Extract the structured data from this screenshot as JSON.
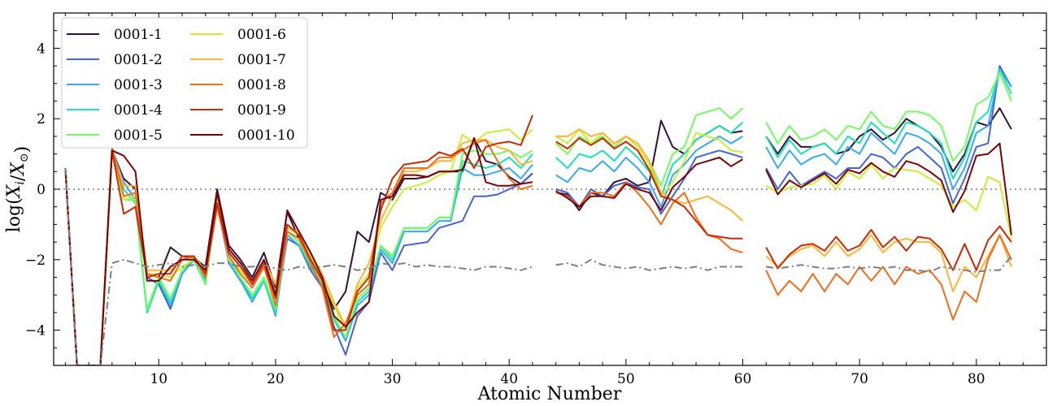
{
  "chart_data": {
    "type": "line",
    "xlabel": "Atomic Number",
    "ylabel": "log(X_i/X_⊙)",
    "xlim": [
      1,
      86
    ],
    "ylim": [
      -5,
      5
    ],
    "x_ticks": [
      10,
      20,
      30,
      40,
      50,
      60,
      70,
      80
    ],
    "y_ticks": [
      -4,
      -2,
      0,
      2,
      4
    ],
    "reference_line": {
      "y": 0,
      "style": "dotted",
      "color": "#7f7f7f"
    },
    "legend_position": "top-left",
    "legend_columns": 2,
    "x": [
      2,
      3,
      4,
      5,
      6,
      7,
      8,
      9,
      10,
      11,
      12,
      13,
      14,
      15,
      16,
      17,
      18,
      19,
      20,
      21,
      22,
      23,
      24,
      25,
      26,
      27,
      28,
      29,
      30,
      31,
      32,
      33,
      34,
      35,
      36,
      37,
      38,
      39,
      40,
      41,
      42,
      44,
      45,
      46,
      47,
      48,
      49,
      50,
      51,
      52,
      53,
      54,
      55,
      56,
      57,
      58,
      59,
      60,
      62,
      63,
      64,
      65,
      66,
      67,
      68,
      69,
      70,
      71,
      72,
      73,
      74,
      75,
      76,
      77,
      78,
      79,
      80,
      81,
      82,
      83
    ],
    "series": [
      {
        "name": "0001-1",
        "color": "#30123b",
        "values": [
          0.6,
          -5,
          -5,
          -5,
          1.1,
          0.3,
          0,
          -2.4,
          -2.5,
          -1.65,
          -1.9,
          -1.95,
          -2.2,
          0,
          -1.6,
          -2,
          -2.5,
          -1.8,
          -2.8,
          -0.65,
          -1.4,
          -1.9,
          -2.6,
          -3.4,
          -2.9,
          -1.2,
          -1.5,
          -0.1,
          -0.3,
          0.3,
          0.3,
          0.35,
          0.5,
          0.5,
          0.5,
          1.45,
          0.8,
          0.7,
          0.35,
          0.15,
          0.45,
          -0.1,
          -0.15,
          -0.6,
          -0.1,
          -0.2,
          0.2,
          0.3,
          0.1,
          0.2,
          1.95,
          1.2,
          1,
          1.4,
          1.6,
          1.8,
          1.6,
          1.65,
          1.5,
          1,
          1.5,
          1.2,
          1.2,
          1.3,
          1.0,
          1.1,
          1.5,
          1.7,
          1.4,
          1.6,
          2.0,
          1.8,
          1.6,
          1.2,
          0.5,
          1.0,
          1.9,
          1.8,
          2.3,
          1.7
        ]
      },
      {
        "name": "0001-2",
        "color": "#4662d7",
        "values": [
          0.6,
          -5,
          -5,
          -5,
          1.1,
          0.2,
          -0.3,
          -2.5,
          -2.7,
          -3.4,
          -2.4,
          -2.0,
          -2.5,
          -0.4,
          -2.1,
          -2.6,
          -3.1,
          -2.6,
          -3.5,
          -1.4,
          -1.6,
          -2.3,
          -2.8,
          -3.9,
          -4.7,
          -3.6,
          -3.2,
          -1.8,
          -2.3,
          -1.6,
          -1.55,
          -1.5,
          -1.1,
          -1.0,
          -0.9,
          -0.2,
          -0.2,
          -0.15,
          0,
          0.15,
          0.45,
          0,
          -0.1,
          -0.5,
          0,
          -0.2,
          0.1,
          0.2,
          0.05,
          0.0,
          -0.7,
          -0.2,
          0.3,
          0.9,
          1.0,
          1.1,
          1.0,
          0.9,
          0.6,
          0.0,
          0.5,
          0.1,
          0.3,
          0.5,
          0.3,
          0.6,
          0.6,
          1.0,
          0.9,
          0.6,
          1.0,
          1.2,
          0.9,
          0.6,
          -0.4,
          0.3,
          1.2,
          1.3,
          3.5,
          2.9
        ]
      },
      {
        "name": "0001-3",
        "color": "#36aaf9",
        "values": [
          0.6,
          -5,
          -5,
          -5,
          1.1,
          0.2,
          -0.3,
          -3.5,
          -2.6,
          -3.3,
          -2.4,
          -2.0,
          -2.6,
          -0.3,
          -2.1,
          -2.6,
          -3.2,
          -2.6,
          -3.6,
          -1.3,
          -1.6,
          -2.2,
          -2.7,
          -3.7,
          -4.3,
          -3.3,
          -3.0,
          -1.7,
          -2.1,
          -1.2,
          -1.2,
          -1.2,
          -0.9,
          -0.9,
          0.6,
          0.4,
          0.4,
          0.5,
          0.6,
          0.3,
          0.7,
          0.4,
          0.2,
          0.6,
          0.5,
          0.8,
          0.5,
          0.9,
          0.6,
          0.2,
          -0.5,
          0.4,
          0.7,
          1.1,
          1.3,
          1.5,
          1.3,
          1.5,
          1.2,
          0.6,
          1.1,
          0.7,
          0.9,
          1.0,
          0.7,
          1.2,
          1.0,
          1.6,
          1.3,
          1.0,
          1.6,
          1.5,
          1.3,
          1.0,
          0,
          0.6,
          1.6,
          1.8,
          3.4,
          2.9
        ]
      },
      {
        "name": "0001-4",
        "color": "#1ae4b6",
        "values": [
          0.6,
          -5,
          -5,
          -5,
          1.1,
          0.0,
          -0.4,
          -3.5,
          -2.6,
          -3.2,
          -2.3,
          -2.0,
          -2.7,
          -0.3,
          -2.0,
          -2.5,
          -3.1,
          -2.6,
          -3.5,
          -1.2,
          -1.5,
          -2.2,
          -2.7,
          -3.7,
          -4.2,
          -3.2,
          -2.9,
          -1.6,
          -2.0,
          -1.1,
          -1.1,
          -1.1,
          -0.8,
          -0.8,
          0.8,
          0.7,
          0.6,
          0.7,
          0.9,
          0.6,
          1.0,
          0.9,
          0.6,
          1.0,
          0.9,
          1.1,
          0.8,
          1.2,
          0.9,
          0.5,
          -0.2,
          0.7,
          1.0,
          1.4,
          1.6,
          1.8,
          1.6,
          1.9,
          1.5,
          0.9,
          1.4,
          1.0,
          1.2,
          1.3,
          1.0,
          1.5,
          1.3,
          1.9,
          1.6,
          1.3,
          1.9,
          1.8,
          1.6,
          1.3,
          0.3,
          0.9,
          1.9,
          2.2,
          3.4,
          2.7
        ]
      },
      {
        "name": "0001-5",
        "color": "#72fe5e",
        "values": [
          0.6,
          -5,
          -5,
          -5,
          1.1,
          -0.3,
          -0.3,
          -3.4,
          -2.5,
          -3.1,
          -2.3,
          -1.9,
          -2.7,
          -0.3,
          -1.9,
          -2.5,
          -3.0,
          -2.5,
          -3.4,
          -1.2,
          -1.5,
          -2.1,
          -2.6,
          -3.6,
          -4.2,
          -3.1,
          -2.8,
          -1.6,
          -1.9,
          -1.1,
          -1.1,
          -1.1,
          -0.8,
          -0.8,
          1.0,
          1.1,
          1.0,
          1.0,
          1.1,
          0.9,
          1.1,
          1.3,
          1.0,
          1.5,
          1.3,
          1.5,
          1.2,
          1.5,
          1.3,
          0.8,
          0.1,
          1.0,
          1.2,
          2.1,
          2.2,
          2.3,
          2.0,
          2.3,
          1.9,
          1.3,
          1.8,
          1.4,
          1.5,
          1.7,
          1.4,
          1.8,
          1.7,
          2.2,
          1.8,
          1.7,
          2.2,
          2.2,
          2.1,
          1.8,
          0.8,
          1.2,
          2.4,
          2.6,
          3.3,
          2.5
        ]
      },
      {
        "name": "0001-6",
        "color": "#c8ef34",
        "values": [
          0.6,
          -5,
          -5,
          -5,
          1.1,
          -0.3,
          -0.2,
          -2.4,
          -2.4,
          -2.5,
          -2.2,
          -2.0,
          -2.4,
          -0.2,
          -2.0,
          -2.3,
          -2.7,
          -2.2,
          -2.9,
          -1.1,
          -1.3,
          -1.9,
          -2.5,
          -3.3,
          -4.0,
          -2.8,
          -2.4,
          -1.1,
          -0.5,
          0.0,
          0.1,
          0.2,
          0.4,
          0.5,
          1.55,
          1.3,
          1.6,
          1.65,
          1.7,
          1.4,
          1.7,
          1.5,
          1.3,
          1.7,
          1.3,
          1.6,
          1.3,
          1.5,
          1.2,
          0.7,
          -0.2,
          0.2,
          0.8,
          1.6,
          1.5,
          1.4,
          1.1,
          1.05,
          0.1,
          -0.1,
          0.05,
          0.1,
          0.15,
          0.4,
          0.0,
          0.5,
          0.3,
          0.7,
          0.3,
          0.6,
          0.55,
          0.5,
          0.3,
          0.1,
          -0.5,
          -0.3,
          -0.6,
          0.35,
          0.2,
          -1.4
        ]
      },
      {
        "name": "0001-7",
        "color": "#fcb536",
        "values": [
          0.6,
          -5,
          -5,
          -5,
          1.1,
          0.1,
          0.1,
          -2.3,
          -2.3,
          -2.3,
          -2.0,
          -1.9,
          -2.3,
          -0.2,
          -1.8,
          -2.2,
          -2.6,
          -2.0,
          -2.7,
          -1.1,
          -1.2,
          -1.8,
          -2.4,
          -3.2,
          -3.9,
          -2.7,
          -2.1,
          -0.9,
          -0.2,
          0.5,
          0.5,
          0.6,
          0.8,
          0.8,
          1.3,
          1.4,
          1.4,
          1.2,
          1.1,
          0.7,
          0.8,
          1.5,
          1.5,
          1.7,
          1.5,
          1.6,
          1.3,
          1.5,
          1.3,
          0.8,
          -0.1,
          -0.3,
          -0.4,
          -0.3,
          -0.2,
          -0.4,
          -0.6,
          -0.9,
          -1.9,
          -2.2,
          -1.9,
          -1.7,
          -1.6,
          -1.9,
          -1.5,
          -1.9,
          -1.7,
          -1.3,
          -1.8,
          -1.5,
          -1.4,
          -1.5,
          -1.5,
          -1.8,
          -2.9,
          -2.2,
          -2.5,
          -1.9,
          -1.3,
          -2.2
        ]
      },
      {
        "name": "0001-8",
        "color": "#f26d18",
        "values": [
          0.6,
          -5,
          -5,
          -5,
          1.2,
          -0.2,
          -0.1,
          -2.4,
          -2.5,
          -2.6,
          -2.0,
          -1.9,
          -2.5,
          -0.5,
          -1.9,
          -2.4,
          -2.8,
          -2.2,
          -3.3,
          -1.2,
          -1.4,
          -2.1,
          -2.8,
          -4.2,
          -3.8,
          -3.0,
          -2.7,
          -0.4,
          -0.1,
          0.6,
          0.6,
          0.6,
          0.9,
          0.9,
          1.1,
          1.3,
          1.4,
          0.8,
          0.3,
          0.0,
          0.1,
          -0.1,
          -0.2,
          -0.5,
          -0.1,
          -0.1,
          -0.2,
          0.2,
          -0.1,
          -0.5,
          -1.0,
          -0.4,
          -0.1,
          -0.8,
          -1.3,
          -1.4,
          -1.7,
          -1.8,
          -2.3,
          -3.0,
          -2.6,
          -2.9,
          -2.4,
          -2.9,
          -2.4,
          -2.7,
          -2.2,
          -2.6,
          -2.2,
          -2.7,
          -2.2,
          -2.4,
          -2.3,
          -2.7,
          -3.7,
          -2.9,
          -3.2,
          -2.0,
          -1.3,
          -2.0
        ]
      },
      {
        "name": "0001-9",
        "color": "#cb2a04",
        "values": [
          0.6,
          -5,
          -5,
          -5,
          1.1,
          -0.7,
          -0.5,
          -2.5,
          -2.4,
          -2.4,
          -1.9,
          -1.9,
          -2.4,
          -0.4,
          -1.8,
          -2.2,
          -2.7,
          -2.1,
          -3.1,
          -1.0,
          -1.3,
          -2.0,
          -2.6,
          -4.0,
          -4.0,
          -2.9,
          -2.5,
          -0.6,
          0.3,
          0.7,
          0.75,
          0.8,
          1.05,
          0.95,
          1.15,
          0.6,
          1.2,
          1.3,
          1.35,
          1.25,
          2.1,
          1.35,
          1.15,
          1.45,
          1.25,
          1.45,
          1.15,
          1.35,
          1.1,
          0.55,
          -0.2,
          -0.3,
          -0.5,
          -0.9,
          -1.3,
          -1.35,
          -1.4,
          -1.4,
          -1.65,
          -2.25,
          -1.85,
          -1.6,
          -1.55,
          -1.75,
          -1.35,
          -1.75,
          -1.6,
          -1.15,
          -1.65,
          -1.35,
          -1.75,
          -1.35,
          -1.4,
          -1.7,
          -2.3,
          -1.55,
          -2.3,
          -1.45,
          -1.05,
          -1.5
        ]
      },
      {
        "name": "0001-10",
        "color": "#7a0403",
        "values": [
          0.6,
          -5,
          -5,
          -5,
          1.1,
          0.95,
          0.5,
          -2.6,
          -2.6,
          -2.2,
          -2.0,
          -2.0,
          -2.3,
          -0.1,
          -1.7,
          -2.1,
          -2.6,
          -2.0,
          -3.0,
          -0.6,
          -1.2,
          -1.8,
          -2.5,
          -3.6,
          -3.9,
          -3.5,
          -3.2,
          -0.3,
          -0.2,
          0.4,
          0.4,
          0.35,
          0.5,
          0.5,
          0.55,
          1.45,
          0.2,
          0.1,
          0.1,
          0.15,
          0.2,
          -0.05,
          -0.25,
          -0.5,
          -0.2,
          -0.2,
          -0.25,
          0.15,
          0.0,
          -0.1,
          -0.6,
          0.05,
          0.35,
          0.7,
          0.8,
          0.9,
          0.65,
          0.85,
          0.55,
          -0.15,
          0.25,
          0.05,
          0.25,
          0.45,
          0.15,
          0.55,
          0.45,
          0.75,
          0.5,
          0.35,
          0.8,
          0.7,
          0.5,
          0.25,
          -0.65,
          -0.05,
          0.95,
          1.0,
          1.3,
          -1.3
        ]
      },
      {
        "name": "",
        "color": "#7f7f7f",
        "style": "dashdot",
        "values": [
          0.6,
          -5,
          -5,
          -5,
          -2.1,
          -2.0,
          -2.1,
          -2.2,
          -2.15,
          -2.1,
          -2.2,
          -2.15,
          -2.2,
          -2.1,
          -2.1,
          -2.2,
          -2.2,
          -2.15,
          -2.25,
          -2.3,
          -2.2,
          -2.25,
          -2.2,
          -2.15,
          -2.2,
          -2.3,
          -2.25,
          -2.1,
          -2.15,
          -2.1,
          -2.2,
          -2.15,
          -2.2,
          -2.2,
          -2.25,
          -2.3,
          -2.2,
          -2.2,
          -2.25,
          -2.3,
          -2.2,
          -2.15,
          -2.1,
          -2.2,
          -2.0,
          -2.15,
          -2.2,
          -2.25,
          -2.2,
          -2.3,
          -2.25,
          -2.2,
          -2.25,
          -2.2,
          -2.3,
          -2.2,
          -2.2,
          -2.2,
          -2.2,
          -2.25,
          -2.2,
          -2.15,
          -2.2,
          -2.25,
          -2.25,
          -2.2,
          -2.25,
          -2.2,
          -2.25,
          -2.2,
          -2.3,
          -2.3,
          -2.35,
          -2.2,
          -2.25,
          -2.3,
          -2.35,
          -2.3,
          -2.3,
          -1.9
        ]
      }
    ]
  }
}
